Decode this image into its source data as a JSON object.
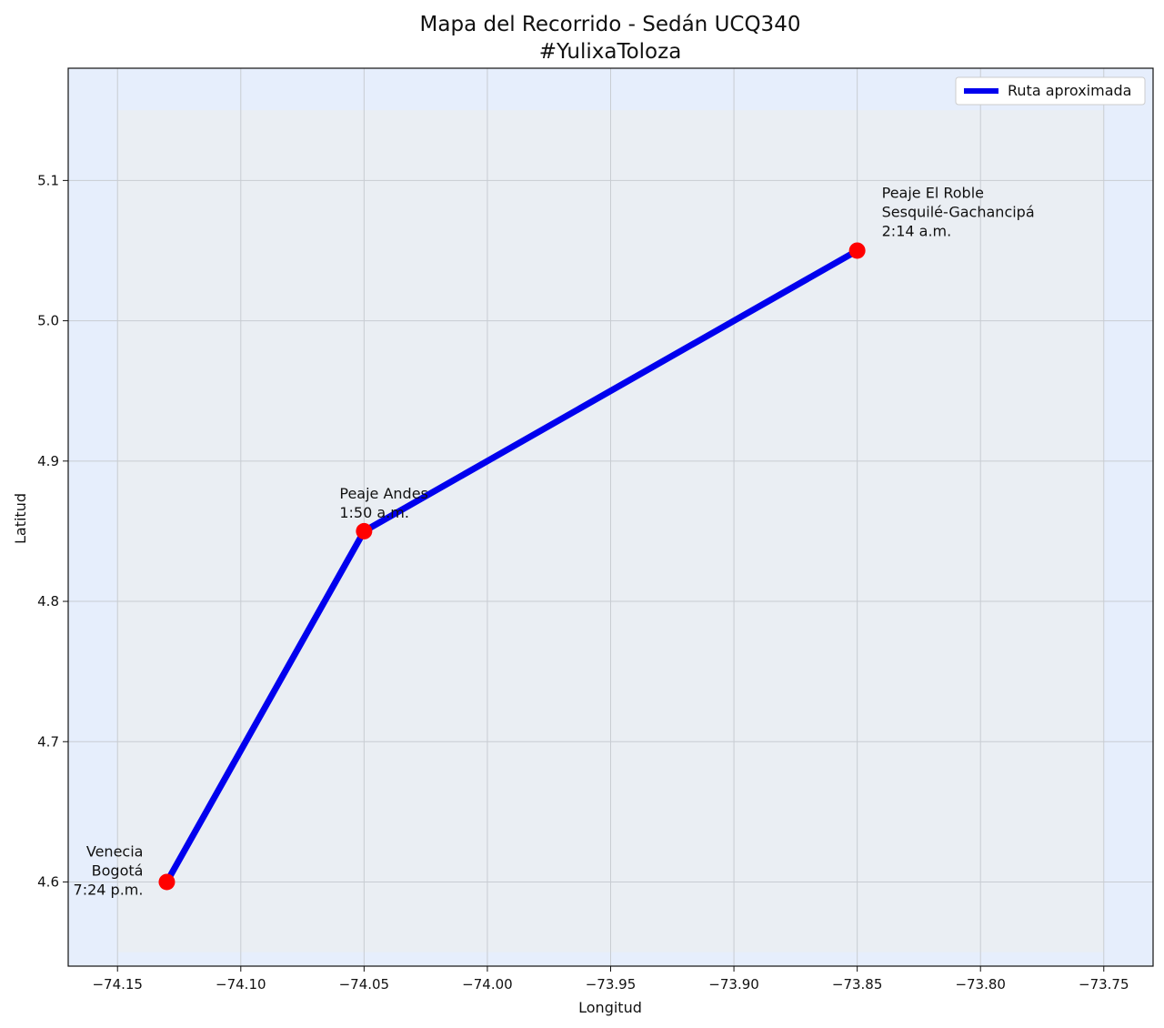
{
  "chart_data": {
    "type": "line",
    "title": "Mapa del Recorrido - Sedán UCQ340",
    "subtitle": "#YulixaToloza",
    "xlabel": "Longitud",
    "ylabel": "Latitud",
    "xlim": [
      -74.17,
      -73.73
    ],
    "ylim": [
      4.54,
      5.18
    ],
    "xticks": [
      -74.15,
      -74.1,
      -74.05,
      -74.0,
      -73.95,
      -73.9,
      -73.85,
      -73.8,
      -73.75
    ],
    "xtick_labels": [
      "−74.15",
      "−74.10",
      "−74.05",
      "−74.00",
      "−73.95",
      "−73.90",
      "−73.85",
      "−73.80",
      "−73.75"
    ],
    "yticks": [
      4.6,
      4.7,
      4.8,
      4.9,
      5.0,
      5.1
    ],
    "ytick_labels": [
      "4.6",
      "4.7",
      "4.8",
      "4.9",
      "5.0",
      "5.1"
    ],
    "grid": true,
    "legend_position": "top-right",
    "map_extent": {
      "lon": [
        -74.15,
        -73.75
      ],
      "lat": [
        4.55,
        5.15
      ]
    },
    "series": [
      {
        "name": "Ruta aproximada",
        "color": "#0000ee",
        "x": [
          -74.13,
          -74.05,
          -73.85
        ],
        "y": [
          4.6,
          4.85,
          5.05
        ]
      }
    ],
    "points": [
      {
        "x": -74.13,
        "y": 4.6,
        "lines": [
          "Venecia",
          "Bogotá",
          "7:24 p.m."
        ],
        "align": "left"
      },
      {
        "x": -74.05,
        "y": 4.85,
        "lines": [
          "Peaje Andes",
          "1:50 a.m."
        ],
        "align": "above"
      },
      {
        "x": -73.85,
        "y": 5.05,
        "lines": [
          "Peaje El Roble",
          "Sesquilé-Gachancipá",
          "2:14 a.m."
        ],
        "align": "right"
      }
    ],
    "colors": {
      "axes_bg": "#e6eefc",
      "map_bg": "#eaeef3",
      "grid": "#c8ccd2",
      "marker": "#ff0000"
    }
  }
}
